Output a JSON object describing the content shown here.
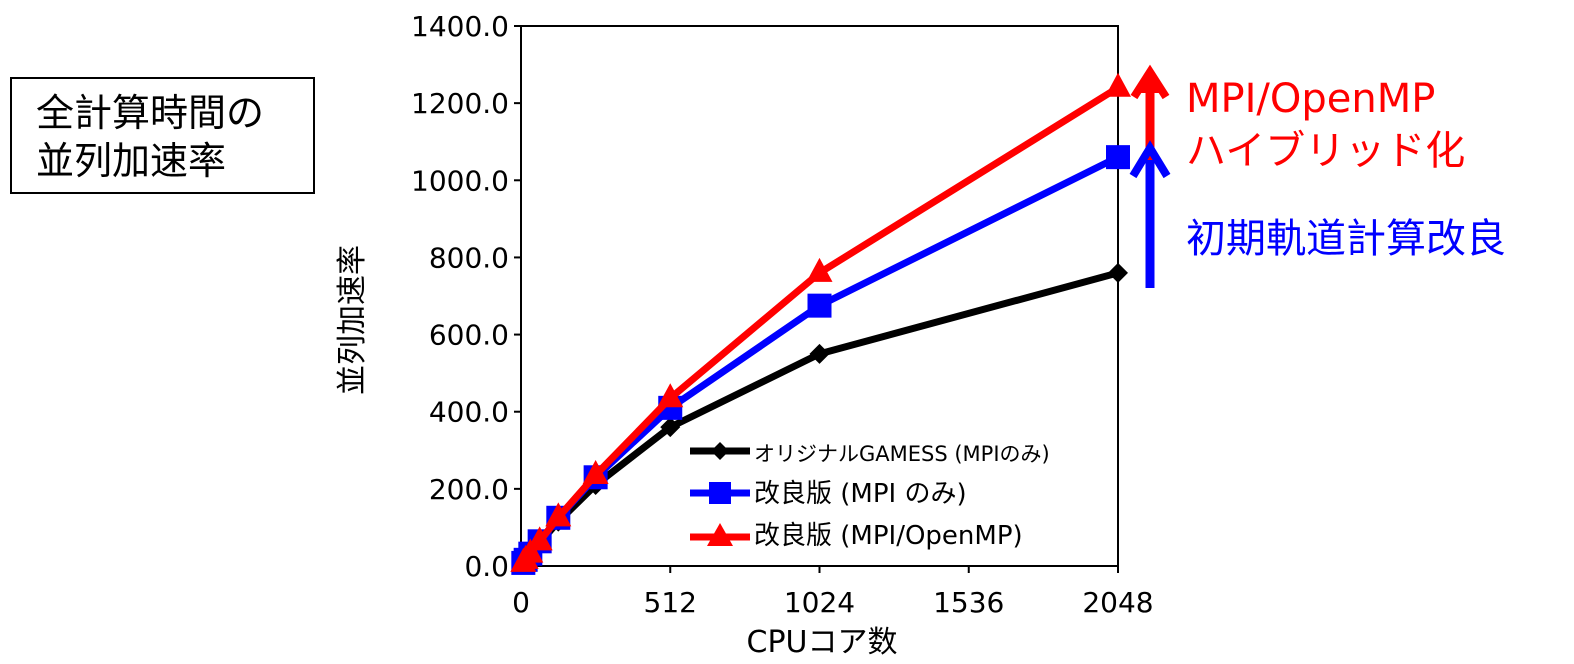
{
  "title_box": {
    "line1": "全計算時間の",
    "line2": "並列加速率"
  },
  "annotations": {
    "hybrid_line1": "MPI/OpenMP",
    "hybrid_line2": "ハイブリッド化",
    "improve": "初期軌道計算改良"
  },
  "colors": {
    "original": "#000000",
    "improved_mpi": "#0000FF",
    "improved_hybrid": "#FF0000",
    "axis": "#000000"
  },
  "chart_data": {
    "type": "line",
    "title": "",
    "xlabel": "CPUコア数",
    "ylabel": "並列加速率",
    "xlim": [
      0,
      2048
    ],
    "ylim": [
      0,
      1400
    ],
    "x_ticks": [
      0,
      512,
      1024,
      1536,
      2048
    ],
    "x_tick_labels": [
      "0",
      "512",
      "1024",
      "1536",
      "2048"
    ],
    "y_ticks": [
      0,
      200,
      400,
      600,
      800,
      1000,
      1200,
      1400
    ],
    "y_tick_labels": [
      "0.0",
      "200.0",
      "400.0",
      "600.0",
      "800.0",
      "1000.0",
      "1200.0",
      "1400.0"
    ],
    "grid": false,
    "legend_position": "lower-right",
    "series": [
      {
        "name": "オリジナルGAMESS (MPIのみ)",
        "marker": "diamond",
        "color": "#000000",
        "x": [
          8,
          16,
          32,
          64,
          128,
          256,
          512,
          1024,
          2048
        ],
        "y": [
          8,
          16,
          31,
          60,
          115,
          210,
          360,
          550,
          760
        ]
      },
      {
        "name": "改良版 (MPI のみ)",
        "marker": "square",
        "color": "#0000FF",
        "x": [
          8,
          16,
          32,
          64,
          128,
          256,
          512,
          1024,
          2048
        ],
        "y": [
          8,
          16,
          32,
          64,
          125,
          230,
          410,
          675,
          1060
        ]
      },
      {
        "name": "改良版 (MPI/OpenMP)",
        "marker": "triangle",
        "color": "#FF0000",
        "x": [
          8,
          16,
          32,
          64,
          128,
          256,
          512,
          1024,
          2048
        ],
        "y": [
          8,
          16,
          32,
          64,
          126,
          236,
          435,
          760,
          1240
        ]
      }
    ]
  }
}
